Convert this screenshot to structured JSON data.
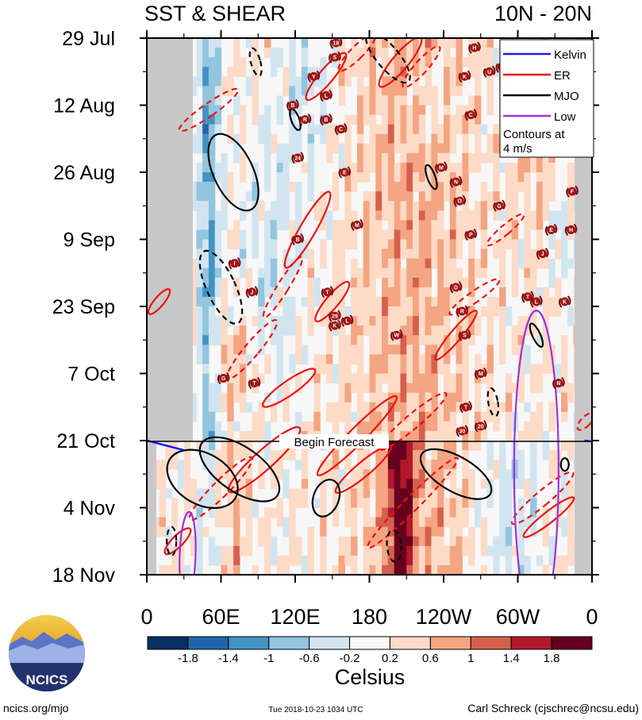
{
  "chart_data": {
    "type": "heatmap",
    "title_left": "SST & SHEAR",
    "title_right": "10N - 20N",
    "x_tick_labels": [
      "0",
      "60E",
      "120E",
      "180",
      "120W",
      "60W",
      "0"
    ],
    "x_range_deg_east": [
      0,
      360
    ],
    "y_tick_labels": [
      "29 Jul",
      "12 Aug",
      "26 Aug",
      "9 Sep",
      "23 Sep",
      "7 Oct",
      "21 Oct",
      "4 Nov",
      "18 Nov"
    ],
    "y_range_days": [
      0,
      112
    ],
    "forecast_day": 84,
    "forecast_label": "Begin Forecast",
    "legend": {
      "entries": [
        {
          "label": "Kelvin",
          "color": "#1a1aee"
        },
        {
          "label": "ER",
          "color": "#ee1111"
        },
        {
          "label": "MJO",
          "color": "#000000"
        },
        {
          "label": "Low",
          "color": "#9933dd"
        }
      ],
      "note_line1": "Contours at",
      "note_line2": "4 m/s"
    },
    "colorbar": {
      "unit": "Celsius",
      "tick_labels": [
        "-1.8",
        "-1.4",
        "-1",
        "-0.6",
        "-0.2",
        "0.2",
        "0.6",
        "1",
        "1.4",
        "1.8"
      ],
      "colors": [
        "#053061",
        "#2166ac",
        "#4393c3",
        "#92c5de",
        "#d1e5f0",
        "#f7f7f7",
        "#fddbc7",
        "#f4a582",
        "#d6604d",
        "#b2182b",
        "#67001f"
      ]
    },
    "storm_markers": [
      {
        "lon": 153,
        "day": 1,
        "label": "18"
      },
      {
        "lon": 152,
        "day": 4,
        "label": "S"
      },
      {
        "lon": 135,
        "day": 8,
        "label": "Y"
      },
      {
        "lon": 118,
        "day": 14,
        "label": "B"
      },
      {
        "lon": 145,
        "day": 12,
        "label": "L"
      },
      {
        "lon": 128,
        "day": 17,
        "label": "R"
      },
      {
        "lon": 145,
        "day": 17,
        "label": "B"
      },
      {
        "lon": 157,
        "day": 19,
        "label": "C"
      },
      {
        "lon": 122,
        "day": 25,
        "label": "24"
      },
      {
        "lon": 160,
        "day": 28,
        "label": "E"
      },
      {
        "lon": 265,
        "day": 2,
        "label": "H"
      },
      {
        "lon": 257,
        "day": 8,
        "label": "K"
      },
      {
        "lon": 277,
        "day": 7,
        "label": "U"
      },
      {
        "lon": 287,
        "day": 6,
        "label": "J"
      },
      {
        "lon": 262,
        "day": 16,
        "label": "C"
      },
      {
        "lon": 238,
        "day": 27,
        "label": "M"
      },
      {
        "lon": 250,
        "day": 30,
        "label": "N"
      },
      {
        "lon": 253,
        "day": 34,
        "label": "O"
      },
      {
        "lon": 285,
        "day": 35,
        "label": "G"
      },
      {
        "lon": 344,
        "day": 32,
        "label": "F"
      },
      {
        "lon": 170,
        "day": 39,
        "label": "M"
      },
      {
        "lon": 122,
        "day": 42,
        "label": "B"
      },
      {
        "lon": 262,
        "day": 41,
        "label": "P"
      },
      {
        "lon": 327,
        "day": 40,
        "label": "E"
      },
      {
        "lon": 343,
        "day": 40,
        "label": "H"
      },
      {
        "lon": 320,
        "day": 45,
        "label": "J"
      },
      {
        "lon": 71,
        "day": 47,
        "label": "I"
      },
      {
        "lon": 85,
        "day": 53,
        "label": "J"
      },
      {
        "lon": 146,
        "day": 53,
        "label": "T"
      },
      {
        "lon": 250,
        "day": 52,
        "label": "D"
      },
      {
        "lon": 308,
        "day": 54,
        "label": "T"
      },
      {
        "lon": 315,
        "day": 55,
        "label": "L"
      },
      {
        "lon": 338,
        "day": 55,
        "label": "K"
      },
      {
        "lon": 152,
        "day": 58,
        "label": "29"
      },
      {
        "lon": 152,
        "day": 60,
        "label": "K"
      },
      {
        "lon": 162,
        "day": 59,
        "label": "L"
      },
      {
        "lon": 255,
        "day": 57,
        "label": "R"
      },
      {
        "lon": 257,
        "day": 62,
        "label": "S"
      },
      {
        "lon": 202,
        "day": 62,
        "label": "W"
      },
      {
        "lon": 270,
        "day": 70,
        "label": "M"
      },
      {
        "lon": 62,
        "day": 71,
        "label": "G"
      },
      {
        "lon": 87,
        "day": 72,
        "label": "T"
      },
      {
        "lon": 333,
        "day": 72,
        "label": "N"
      },
      {
        "lon": 258,
        "day": 77,
        "label": "T"
      },
      {
        "lon": 255,
        "day": 82,
        "label": "30"
      },
      {
        "lon": 270,
        "day": 81,
        "label": "20"
      }
    ]
  },
  "logo": {
    "text": "NCICS"
  },
  "footer": {
    "left": "ncics.org/mjo",
    "center": "Tue 2018-10-23 1034 UTC",
    "right": "Carl Schreck (cjschrec@ncsu.edu)"
  }
}
